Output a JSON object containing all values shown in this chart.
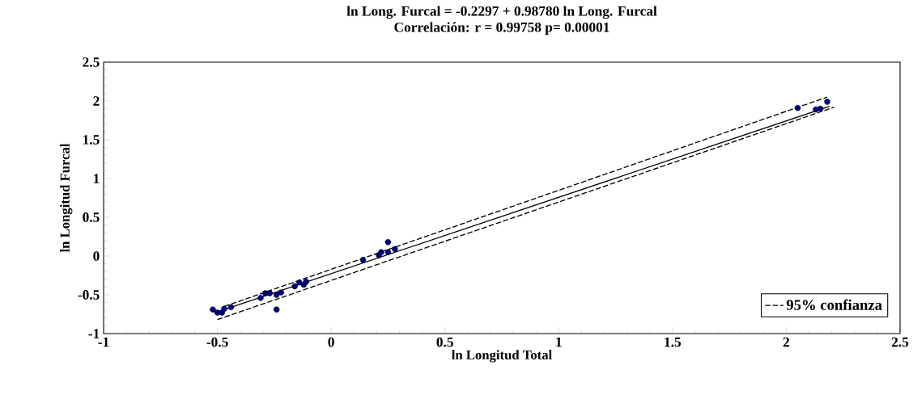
{
  "chart_data": {
    "type": "scatter",
    "title": "ln Long. Furcal = -0.2297 + 0.98780 ln Long. Furcal",
    "subtitle": "Correlación: r = 0.99758 p= 0.00001",
    "xlabel": "ln Longitud Total",
    "ylabel": "ln Longitud Furcal",
    "xlim": [
      -1,
      2.5
    ],
    "ylim": [
      -1,
      2.5
    ],
    "xticks": [
      -1,
      -0.5,
      0,
      0.5,
      1,
      1.5,
      2,
      2.5
    ],
    "yticks": [
      -1,
      -0.5,
      0,
      0.5,
      1,
      1.5,
      2,
      2.5
    ],
    "legend": "bottom right",
    "series": [
      {
        "color": "#000080",
        "marker": "circle",
        "x": [
          -0.52,
          -0.5,
          -0.48,
          -0.47,
          -0.44,
          -0.31,
          -0.29,
          -0.27,
          -0.24,
          -0.22,
          -0.24,
          -0.16,
          -0.14,
          -0.12,
          -0.11,
          0.14,
          0.21,
          0.22,
          0.25,
          0.25,
          0.28,
          2.05,
          2.13,
          2.15,
          2.18
        ],
        "values": [
          -0.69,
          -0.73,
          -0.73,
          -0.68,
          -0.66,
          -0.54,
          -0.48,
          -0.48,
          -0.5,
          -0.47,
          -0.69,
          -0.39,
          -0.34,
          -0.37,
          -0.33,
          -0.05,
          0.01,
          0.05,
          0.05,
          0.18,
          0.09,
          1.91,
          1.89,
          1.9,
          1.99
        ]
      },
      {
        "type": "line",
        "color": "#000000",
        "line_style": "solid",
        "marker": "none",
        "x": [
          -0.5,
          2.19
        ],
        "values": [
          -0.72,
          1.93
        ]
      },
      {
        "type": "line",
        "name": "95% confianza",
        "color": "#000000",
        "line_style": "dashed",
        "marker": "none",
        "x": [
          -0.47,
          2.18
        ],
        "values": [
          -0.65,
          2.05
        ]
      },
      {
        "type": "line",
        "color": "#000000",
        "line_style": "dashed",
        "marker": "none",
        "x": [
          -0.5,
          2.21
        ],
        "values": [
          -0.82,
          1.92
        ]
      }
    ]
  }
}
